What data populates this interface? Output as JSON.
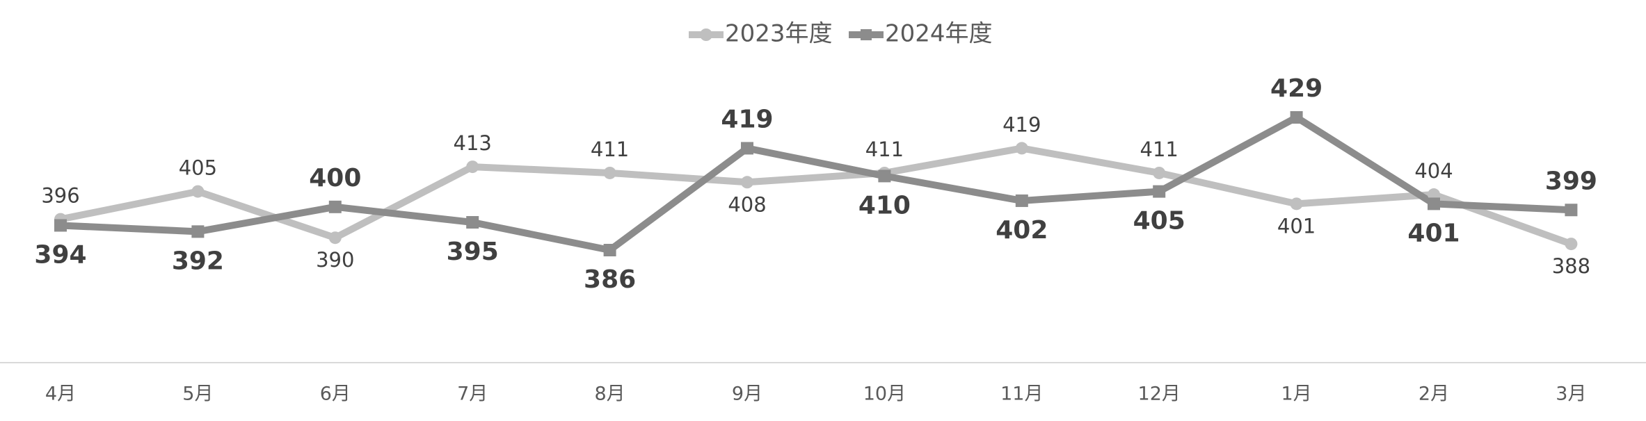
{
  "chart_data": {
    "type": "line",
    "categories": [
      "4月",
      "5月",
      "6月",
      "7月",
      "8月",
      "9月",
      "10月",
      "11月",
      "12月",
      "1月",
      "2月",
      "3月"
    ],
    "series": [
      {
        "name": "2023年度",
        "color": "#bfbfbf",
        "marker": "circle",
        "values": [
          396,
          405,
          390,
          413,
          411,
          408,
          411,
          419,
          411,
          401,
          404,
          388
        ]
      },
      {
        "name": "2024年度",
        "color": "#8c8c8c",
        "marker": "square",
        "values": [
          394,
          392,
          400,
          395,
          386,
          419,
          410,
          402,
          405,
          429,
          401,
          399
        ]
      }
    ],
    "legend": "top"
  }
}
